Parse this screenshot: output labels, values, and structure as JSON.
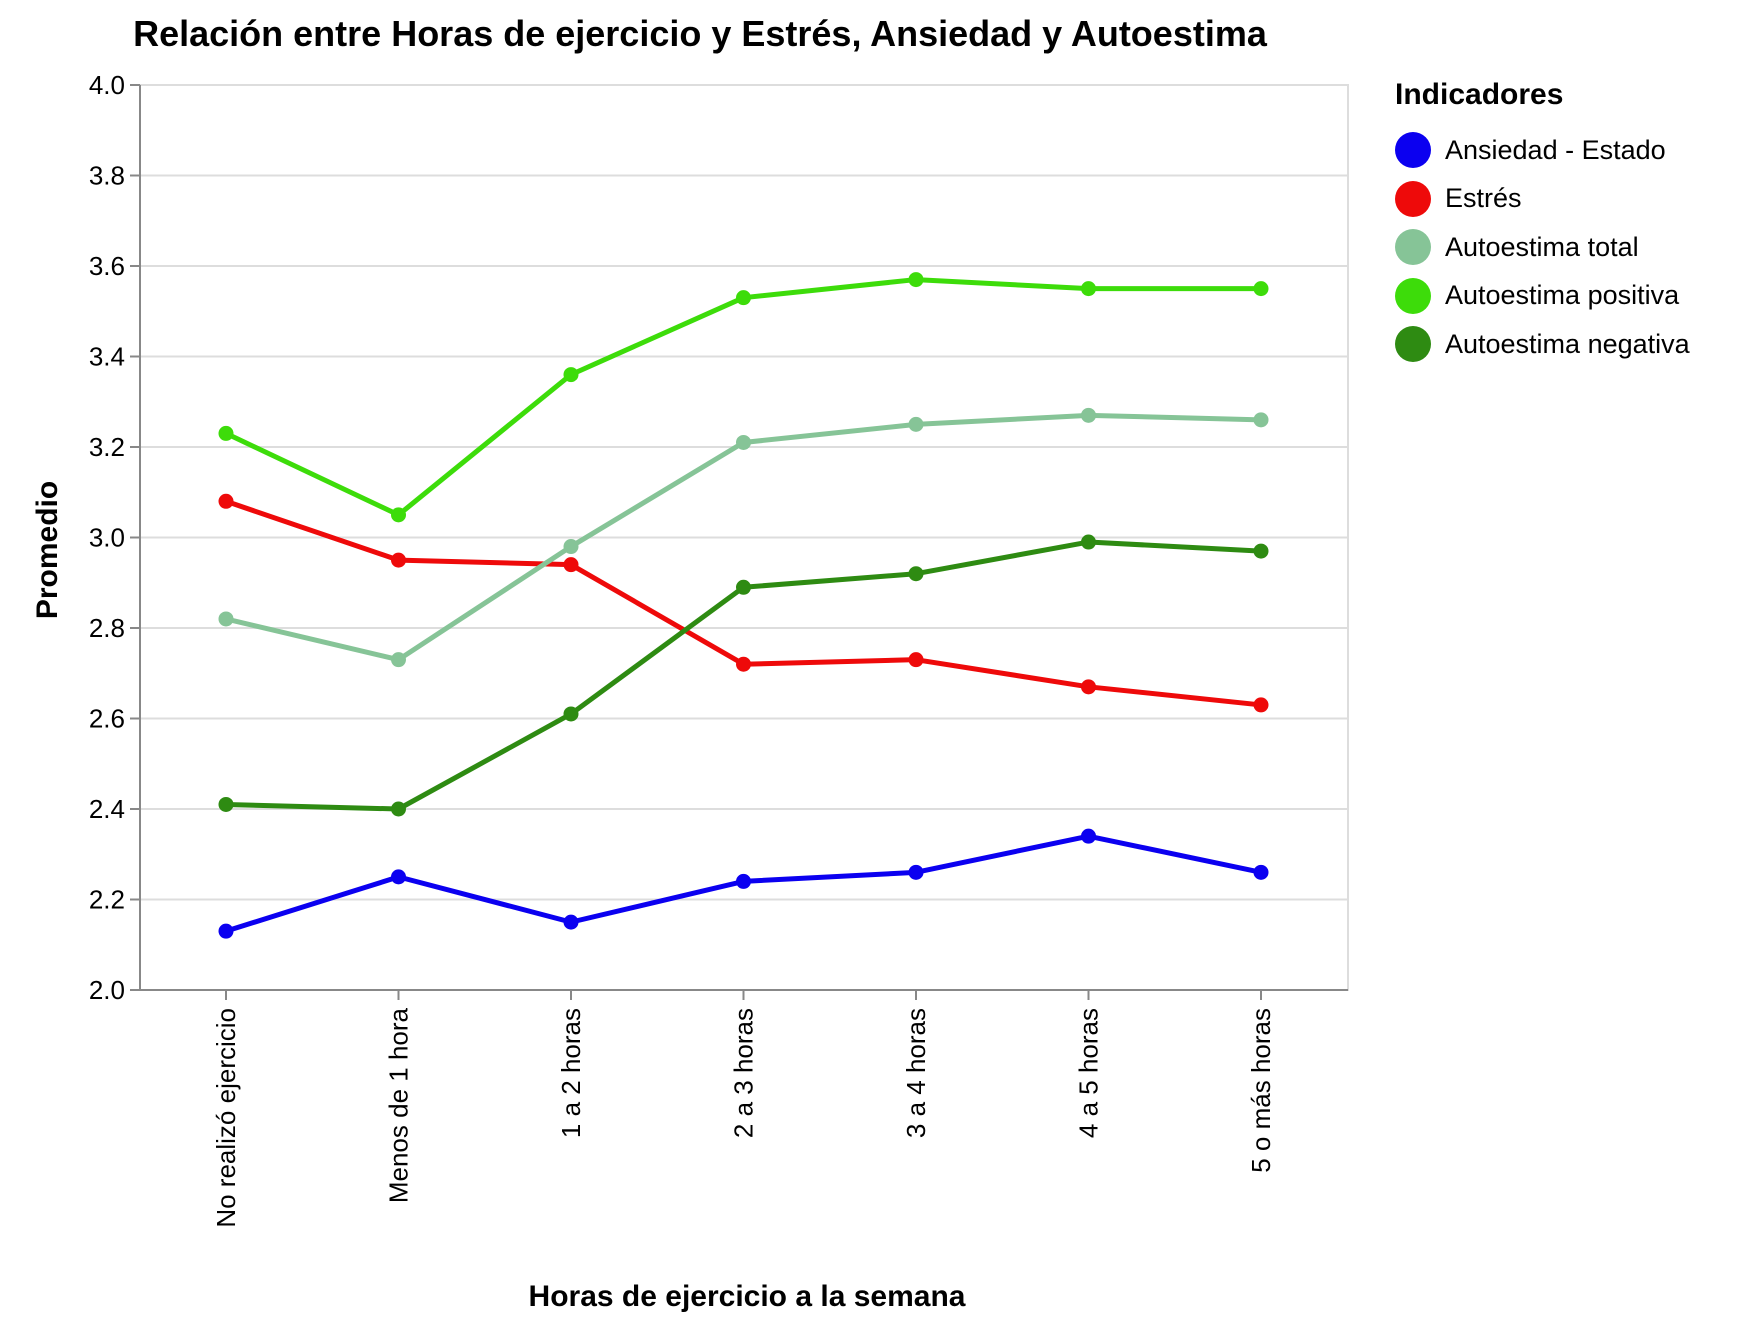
{
  "chart_data": {
    "type": "line",
    "title": "Relación entre Horas de ejercicio y Estrés, Ansiedad y Autoestima",
    "xlabel": "Horas de ejercicio a la semana",
    "ylabel": "Promedio",
    "categories": [
      "No realizó ejercicio",
      "Menos de 1 hora",
      "1 a 2 horas",
      "2 a 3 horas",
      "3 a 4 horas",
      "4 a 5 horas",
      "5 o más horas"
    ],
    "ylim": [
      2.0,
      4.0
    ],
    "yticks": [
      "2.0",
      "2.2",
      "2.4",
      "2.6",
      "2.8",
      "3.0",
      "3.2",
      "3.4",
      "3.6",
      "3.8",
      "4.0"
    ],
    "grid": true,
    "legend": {
      "title": "Indicadores",
      "position": "right"
    },
    "series": [
      {
        "name": "Ansiedad - Estado",
        "color": "#0b00f0",
        "values": [
          2.13,
          2.25,
          2.15,
          2.24,
          2.26,
          2.34,
          2.26
        ]
      },
      {
        "name": "Estrés",
        "color": "#ee0a0a",
        "values": [
          3.08,
          2.95,
          2.94,
          2.72,
          2.73,
          2.67,
          2.63
        ]
      },
      {
        "name": "Autoestima total",
        "color": "#86c497",
        "values": [
          2.82,
          2.73,
          2.98,
          3.21,
          3.25,
          3.27,
          3.26
        ]
      },
      {
        "name": "Autoestima positiva",
        "color": "#3ddc0a",
        "values": [
          3.23,
          3.05,
          3.36,
          3.53,
          3.57,
          3.55,
          3.55
        ]
      },
      {
        "name": "Autoestima negativa",
        "color": "#2e8b12",
        "values": [
          2.41,
          2.4,
          2.61,
          2.89,
          2.92,
          2.99,
          2.97
        ]
      }
    ]
  }
}
